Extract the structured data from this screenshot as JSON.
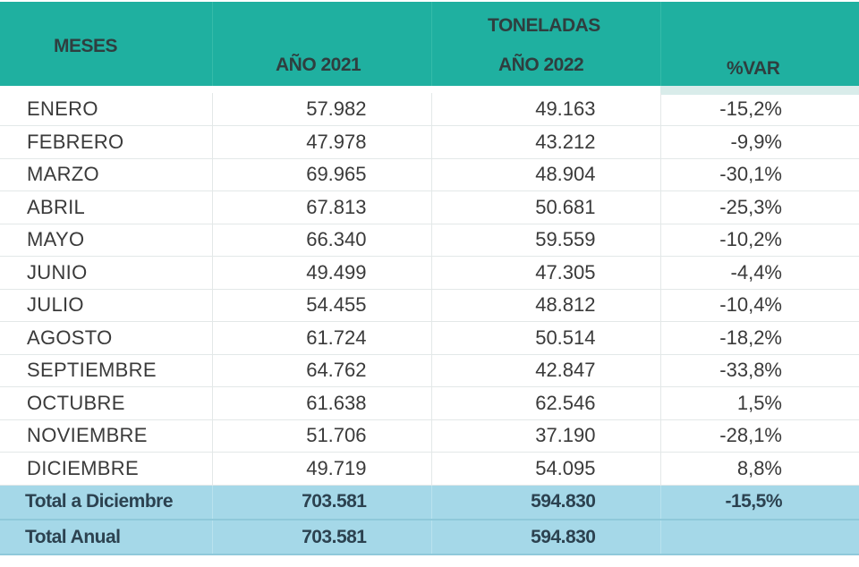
{
  "header": {
    "meses": "MESES",
    "toneladas": "TONELADAS",
    "anio_2021": "AÑO 2021",
    "anio_2022": "AÑO 2022",
    "var": "%VAR"
  },
  "rows": [
    {
      "mes": "ENERO",
      "a2021": "57.982",
      "a2022": "49.163",
      "var": "-15,2%"
    },
    {
      "mes": "FEBRERO",
      "a2021": "47.978",
      "a2022": "43.212",
      "var": "-9,9%"
    },
    {
      "mes": "MARZO",
      "a2021": "69.965",
      "a2022": "48.904",
      "var": "-30,1%"
    },
    {
      "mes": "ABRIL",
      "a2021": "67.813",
      "a2022": "50.681",
      "var": "-25,3%"
    },
    {
      "mes": "MAYO",
      "a2021": "66.340",
      "a2022": "59.559",
      "var": "-10,2%"
    },
    {
      "mes": "JUNIO",
      "a2021": "49.499",
      "a2022": "47.305",
      "var": "-4,4%"
    },
    {
      "mes": "JULIO",
      "a2021": "54.455",
      "a2022": "48.812",
      "var": "-10,4%"
    },
    {
      "mes": "AGOSTO",
      "a2021": "61.724",
      "a2022": "50.514",
      "var": "-18,2%"
    },
    {
      "mes": "SEPTIEMBRE",
      "a2021": "64.762",
      "a2022": "42.847",
      "var": "-33,8%"
    },
    {
      "mes": "OCTUBRE",
      "a2021": "61.638",
      "a2022": "62.546",
      "var": "1,5%"
    },
    {
      "mes": "NOVIEMBRE",
      "a2021": "51.706",
      "a2022": "37.190",
      "var": "-28,1%"
    },
    {
      "mes": "DICIEMBRE",
      "a2021": "49.719",
      "a2022": "54.095",
      "var": "8,8%"
    }
  ],
  "totals": [
    {
      "mes": "Total a Diciembre",
      "a2021": "703.581",
      "a2022": "594.830",
      "var": "-15,5%"
    },
    {
      "mes": "Total Anual",
      "a2021": "703.581",
      "a2022": "594.830",
      "var": ""
    }
  ],
  "colors": {
    "header_bg": "#1fb0a0",
    "header_text": "#2f3e3f",
    "total_bg": "#a5d8e8",
    "total_text": "#2c4250"
  }
}
